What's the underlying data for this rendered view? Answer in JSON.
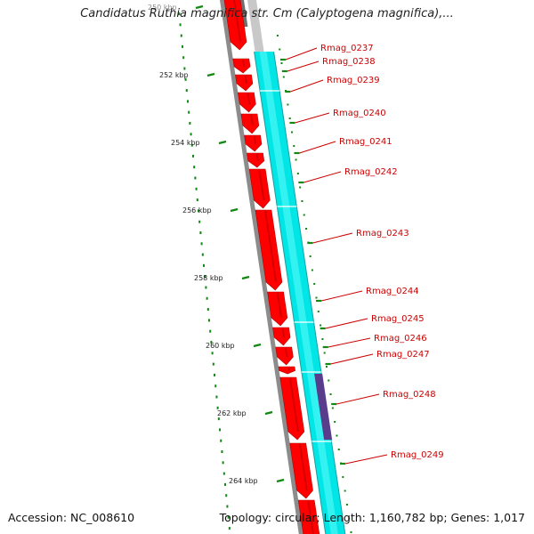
{
  "title": "Candidatus Ruthia magnifica str. Cm (Calyptogena magnifica),...",
  "footer": {
    "accession": "Accession: NC_008610",
    "topology": "Topology: circular; Length: 1,160,782 bp; Genes: 1,017"
  },
  "colors": {
    "cds": "#ff0000",
    "cds_shade": "#b30000",
    "rna_track": "#00e5e5",
    "highlight_feature": "#5a3c8c",
    "backbone": "#8c8c8c",
    "ruler_ticks": "#118811",
    "label_text": "#cc0000"
  },
  "ruler": {
    "unit": "kbp",
    "labels": [
      {
        "kbp": 250,
        "text": "250 kbp"
      },
      {
        "kbp": 252,
        "text": "252 kbp"
      },
      {
        "kbp": 254,
        "text": "254 kbp"
      },
      {
        "kbp": 256,
        "text": "256 kbp"
      },
      {
        "kbp": 258,
        "text": "258 kbp"
      },
      {
        "kbp": 260,
        "text": "260 kbp"
      },
      {
        "kbp": 262,
        "text": "262 kbp"
      },
      {
        "kbp": 264,
        "text": "264 kbp"
      }
    ]
  },
  "genes": [
    {
      "label": "Rmag_0237"
    },
    {
      "label": "Rmag_0238"
    },
    {
      "label": "Rmag_0239"
    },
    {
      "label": "Rmag_0240"
    },
    {
      "label": "Rmag_0241"
    },
    {
      "label": "Rmag_0242"
    },
    {
      "label": "Rmag_0243"
    },
    {
      "label": "Rmag_0244"
    },
    {
      "label": "Rmag_0245"
    },
    {
      "label": "Rmag_0246"
    },
    {
      "label": "Rmag_0247"
    },
    {
      "label": "Rmag_0248"
    },
    {
      "label": "Rmag_0249"
    }
  ]
}
